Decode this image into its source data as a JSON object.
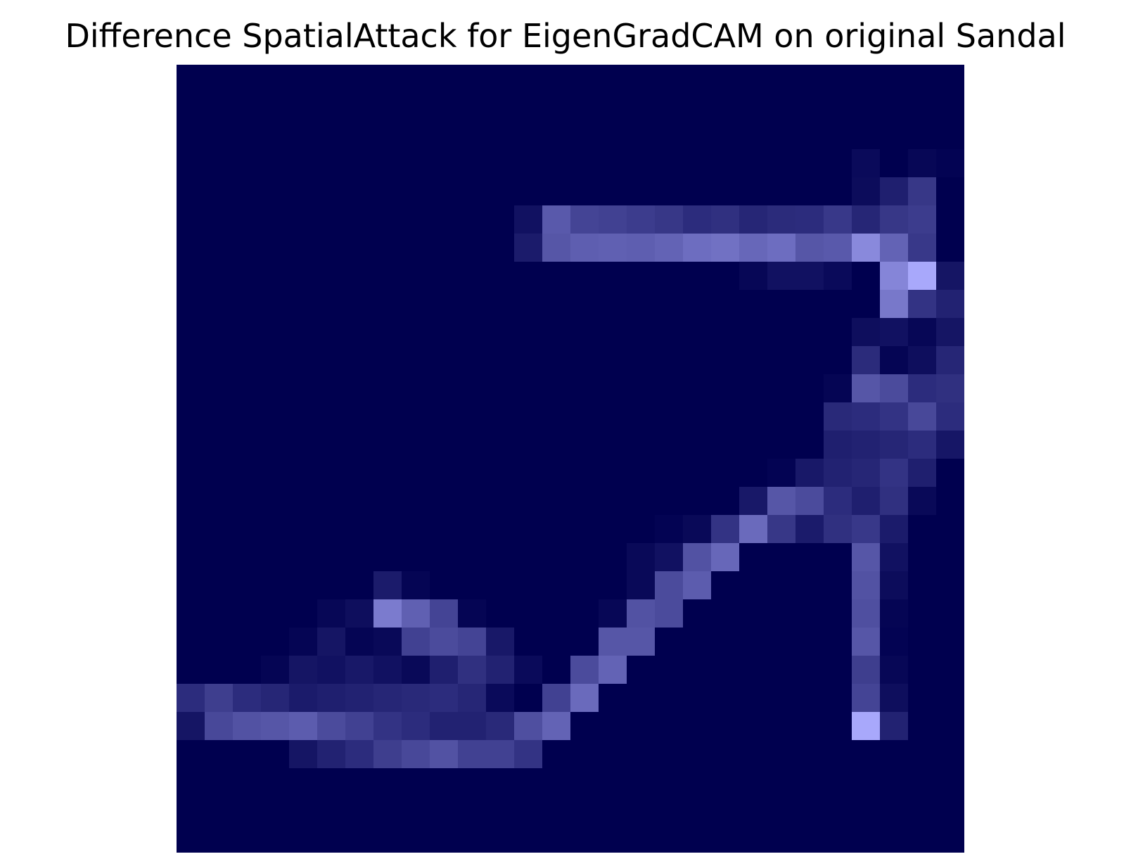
{
  "title": "Difference SpatialAttack for EigenGradCAM on original Sandal",
  "chart_data": {
    "type": "heatmap",
    "title": "Difference SpatialAttack for EigenGradCAM on original Sandal",
    "rows": 28,
    "cols": 28,
    "grid": false,
    "axes_visible": false,
    "colormap": {
      "low": "#00004f",
      "high": "#ababff"
    },
    "value_range": [
      0,
      1
    ],
    "values": [
      [
        0,
        0,
        0,
        0,
        0,
        0,
        0,
        0,
        0,
        0,
        0,
        0,
        0,
        0,
        0,
        0,
        0,
        0,
        0,
        0,
        0,
        0,
        0,
        0,
        0,
        0,
        0,
        0
      ],
      [
        0,
        0,
        0,
        0,
        0,
        0,
        0,
        0,
        0,
        0,
        0,
        0,
        0,
        0,
        0,
        0,
        0,
        0,
        0,
        0,
        0,
        0,
        0,
        0,
        0,
        0,
        0,
        0
      ],
      [
        0,
        0,
        0,
        0,
        0,
        0,
        0,
        0,
        0,
        0,
        0,
        0,
        0,
        0,
        0,
        0,
        0,
        0,
        0,
        0,
        0,
        0,
        0,
        0,
        0,
        0,
        0,
        0
      ],
      [
        0,
        0,
        0,
        0,
        0,
        0,
        0,
        0,
        0,
        0,
        0,
        0,
        0,
        0,
        0,
        0,
        0,
        0,
        0,
        0,
        0,
        0,
        0,
        0,
        0.06,
        0,
        0.04,
        0.02
      ],
      [
        0,
        0,
        0,
        0,
        0,
        0,
        0,
        0,
        0,
        0,
        0,
        0,
        0,
        0,
        0,
        0,
        0,
        0,
        0,
        0,
        0,
        0,
        0,
        0,
        0.07,
        0.18,
        0.32,
        0
      ],
      [
        0,
        0,
        0,
        0,
        0,
        0,
        0,
        0,
        0,
        0,
        0,
        0,
        0.1,
        0.52,
        0.4,
        0.38,
        0.35,
        0.32,
        0.26,
        0.28,
        0.22,
        0.25,
        0.26,
        0.33,
        0.22,
        0.32,
        0.35,
        0
      ],
      [
        0,
        0,
        0,
        0,
        0,
        0,
        0,
        0,
        0,
        0,
        0,
        0,
        0.16,
        0.5,
        0.55,
        0.56,
        0.55,
        0.58,
        0.64,
        0.66,
        0.6,
        0.64,
        0.5,
        0.52,
        0.8,
        0.58,
        0.33,
        0
      ],
      [
        0,
        0,
        0,
        0,
        0,
        0,
        0,
        0,
        0,
        0,
        0,
        0,
        0,
        0,
        0,
        0,
        0,
        0,
        0,
        0,
        0.04,
        0.1,
        0.1,
        0.06,
        0,
        0.78,
        0.98,
        0.12
      ],
      [
        0,
        0,
        0,
        0,
        0,
        0,
        0,
        0,
        0,
        0,
        0,
        0,
        0,
        0,
        0,
        0,
        0,
        0,
        0,
        0,
        0,
        0,
        0,
        0,
        0,
        0.7,
        0.3,
        0.2
      ],
      [
        0,
        0,
        0,
        0,
        0,
        0,
        0,
        0,
        0,
        0,
        0,
        0,
        0,
        0,
        0,
        0,
        0,
        0,
        0,
        0,
        0,
        0,
        0,
        0,
        0.08,
        0.1,
        0.04,
        0.12
      ],
      [
        0,
        0,
        0,
        0,
        0,
        0,
        0,
        0,
        0,
        0,
        0,
        0,
        0,
        0,
        0,
        0,
        0,
        0,
        0,
        0,
        0,
        0,
        0,
        0,
        0.25,
        0.03,
        0.08,
        0.22
      ],
      [
        0,
        0,
        0,
        0,
        0,
        0,
        0,
        0,
        0,
        0,
        0,
        0,
        0,
        0,
        0,
        0,
        0,
        0,
        0,
        0,
        0,
        0,
        0,
        0.03,
        0.5,
        0.44,
        0.26,
        0.28
      ],
      [
        0,
        0,
        0,
        0,
        0,
        0,
        0,
        0,
        0,
        0,
        0,
        0,
        0,
        0,
        0,
        0,
        0,
        0,
        0,
        0,
        0,
        0,
        0,
        0.24,
        0.26,
        0.3,
        0.42,
        0.26
      ],
      [
        0,
        0,
        0,
        0,
        0,
        0,
        0,
        0,
        0,
        0,
        0,
        0,
        0,
        0,
        0,
        0,
        0,
        0,
        0,
        0,
        0,
        0,
        0,
        0.18,
        0.2,
        0.22,
        0.26,
        0.13
      ],
      [
        0,
        0,
        0,
        0,
        0,
        0,
        0,
        0,
        0,
        0,
        0,
        0,
        0,
        0,
        0,
        0,
        0,
        0,
        0,
        0,
        0,
        0.02,
        0.14,
        0.2,
        0.22,
        0.3,
        0.18,
        0
      ],
      [
        0,
        0,
        0,
        0,
        0,
        0,
        0,
        0,
        0,
        0,
        0,
        0,
        0,
        0,
        0,
        0,
        0,
        0,
        0,
        0,
        0.14,
        0.5,
        0.44,
        0.26,
        0.18,
        0.28,
        0.05,
        0
      ],
      [
        0,
        0,
        0,
        0,
        0,
        0,
        0,
        0,
        0,
        0,
        0,
        0,
        0,
        0,
        0,
        0,
        0,
        0.02,
        0.05,
        0.3,
        0.62,
        0.32,
        0.16,
        0.28,
        0.33,
        0.16,
        0,
        0
      ],
      [
        0,
        0,
        0,
        0,
        0,
        0,
        0,
        0,
        0,
        0,
        0,
        0,
        0,
        0,
        0,
        0,
        0.05,
        0.1,
        0.48,
        0.6,
        0,
        0,
        0,
        0,
        0.5,
        0.1,
        0,
        0
      ],
      [
        0,
        0,
        0,
        0,
        0,
        0,
        0,
        0.16,
        0.03,
        0,
        0,
        0,
        0,
        0,
        0,
        0,
        0.05,
        0.44,
        0.54,
        0,
        0,
        0,
        0,
        0,
        0.48,
        0.07,
        0,
        0
      ],
      [
        0,
        0,
        0,
        0,
        0,
        0.04,
        0.08,
        0.72,
        0.56,
        0.4,
        0.03,
        0,
        0,
        0,
        0,
        0.04,
        0.48,
        0.44,
        0,
        0,
        0,
        0,
        0,
        0,
        0.46,
        0.03,
        0,
        0
      ],
      [
        0,
        0,
        0,
        0,
        0.03,
        0.12,
        0.03,
        0.05,
        0.38,
        0.44,
        0.4,
        0.14,
        0,
        0,
        0,
        0.5,
        0.5,
        0,
        0,
        0,
        0,
        0,
        0,
        0,
        0.5,
        0.02,
        0,
        0
      ],
      [
        0,
        0,
        0,
        0.03,
        0.12,
        0.1,
        0.14,
        0.1,
        0.05,
        0.18,
        0.28,
        0.2,
        0.06,
        0,
        0.44,
        0.58,
        0,
        0,
        0,
        0,
        0,
        0,
        0,
        0,
        0.36,
        0.04,
        0,
        0
      ],
      [
        0.26,
        0.36,
        0.26,
        0.22,
        0.16,
        0.18,
        0.2,
        0.22,
        0.24,
        0.26,
        0.22,
        0.06,
        0,
        0.38,
        0.62,
        0,
        0,
        0,
        0,
        0,
        0,
        0,
        0,
        0,
        0.4,
        0.08,
        0,
        0
      ],
      [
        0.12,
        0.42,
        0.48,
        0.5,
        0.54,
        0.44,
        0.38,
        0.3,
        0.26,
        0.2,
        0.2,
        0.24,
        0.46,
        0.58,
        0,
        0,
        0,
        0,
        0,
        0,
        0,
        0,
        0,
        0,
        0.98,
        0.2,
        0,
        0
      ],
      [
        0,
        0,
        0,
        0,
        0.12,
        0.2,
        0.26,
        0.36,
        0.42,
        0.48,
        0.38,
        0.38,
        0.3,
        0,
        0,
        0,
        0,
        0,
        0,
        0,
        0,
        0,
        0,
        0,
        0,
        0,
        0,
        0
      ],
      [
        0,
        0,
        0,
        0,
        0,
        0,
        0,
        0,
        0,
        0,
        0,
        0,
        0,
        0,
        0,
        0,
        0,
        0,
        0,
        0,
        0,
        0,
        0,
        0,
        0,
        0,
        0,
        0
      ],
      [
        0,
        0,
        0,
        0,
        0,
        0,
        0,
        0,
        0,
        0,
        0,
        0,
        0,
        0,
        0,
        0,
        0,
        0,
        0,
        0,
        0,
        0,
        0,
        0,
        0,
        0,
        0,
        0
      ],
      [
        0,
        0,
        0,
        0,
        0,
        0,
        0,
        0,
        0,
        0,
        0,
        0,
        0,
        0,
        0,
        0,
        0,
        0,
        0,
        0,
        0,
        0,
        0,
        0,
        0,
        0,
        0,
        0
      ]
    ]
  }
}
